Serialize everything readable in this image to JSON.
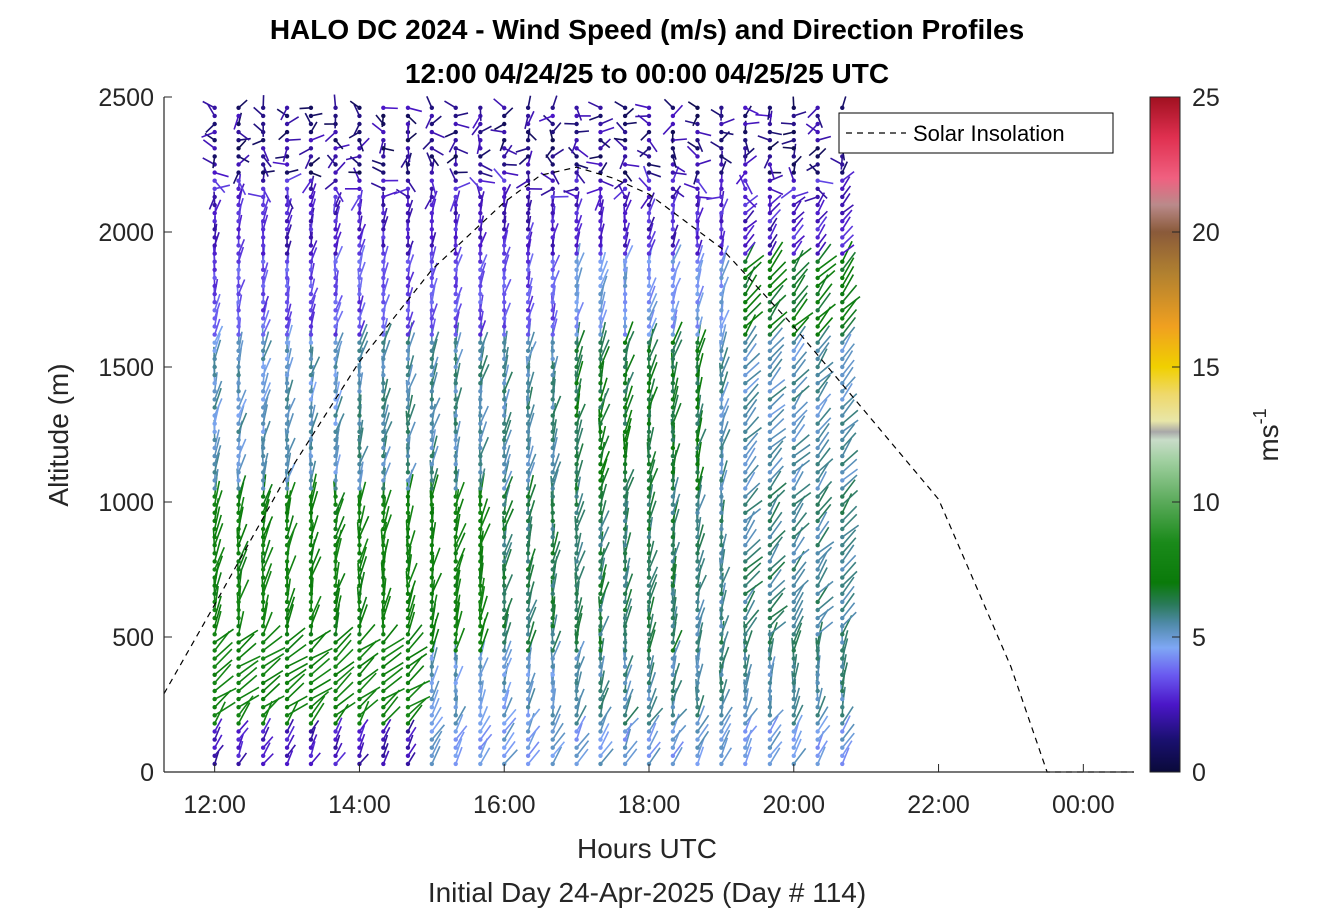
{
  "chart_data": {
    "type": "wind_barb_profile",
    "title_line1": "HALO DC 2024 - Wind Speed (m/s) and Direction Profiles",
    "title_line2": "12:00 04/24/25 to 00:00 04/25/25  UTC",
    "xlabel": "Hours UTC",
    "xlabel2": "Initial Day 24-Apr-2025 (Day # 114)",
    "ylabel": "Altitude (m)",
    "xlim": [
      11.3,
      24.7
    ],
    "ylim": [
      0,
      2500
    ],
    "xticks": [
      12,
      14,
      16,
      18,
      20,
      22,
      24
    ],
    "xtick_labels": [
      "12:00",
      "14:00",
      "16:00",
      "18:00",
      "20:00",
      "22:00",
      "00:00"
    ],
    "yticks": [
      0,
      500,
      1000,
      1500,
      2000,
      2500
    ],
    "ytick_labels": [
      "0",
      "500",
      "1000",
      "1500",
      "2000",
      "2500"
    ],
    "colorbar": {
      "label": "ms",
      "label_superscript": "-1",
      "range": [
        0,
        25
      ],
      "ticks": [
        0,
        5,
        10,
        15,
        20,
        25
      ],
      "tick_labels": [
        "0",
        "5",
        "10",
        "15",
        "20",
        "25"
      ],
      "stops": [
        {
          "v": 0,
          "c": "#0a0a3a"
        },
        {
          "v": 1.2,
          "c": "#1a1070"
        },
        {
          "v": 2.5,
          "c": "#4b16c8"
        },
        {
          "v": 3.6,
          "c": "#6a5af0"
        },
        {
          "v": 4.6,
          "c": "#7fa7f5"
        },
        {
          "v": 5.5,
          "c": "#4f8aa8"
        },
        {
          "v": 6.2,
          "c": "#2a7a5a"
        },
        {
          "v": 7.0,
          "c": "#0a7a0a"
        },
        {
          "v": 8.5,
          "c": "#1a8a1a"
        },
        {
          "v": 10.0,
          "c": "#5aaa5a"
        },
        {
          "v": 11.5,
          "c": "#9fcf9f"
        },
        {
          "v": 12.3,
          "c": "#c8dcc8"
        },
        {
          "v": 12.6,
          "c": "#a8a8a8"
        },
        {
          "v": 13.0,
          "c": "#e8e6a8"
        },
        {
          "v": 14.0,
          "c": "#efd86a"
        },
        {
          "v": 15.0,
          "c": "#f0d000"
        },
        {
          "v": 16.5,
          "c": "#f0a020"
        },
        {
          "v": 18.5,
          "c": "#b08030"
        },
        {
          "v": 20.0,
          "c": "#8a5a3a"
        },
        {
          "v": 21.0,
          "c": "#ba8a8a"
        },
        {
          "v": 22.0,
          "c": "#f06080"
        },
        {
          "v": 23.5,
          "c": "#e03050"
        },
        {
          "v": 25.0,
          "c": "#a01020"
        }
      ]
    },
    "profile_times": [
      12.0,
      12.33,
      12.67,
      13.0,
      13.33,
      13.67,
      14.0,
      14.33,
      14.67,
      15.0,
      15.33,
      15.67,
      16.0,
      16.33,
      16.67,
      17.0,
      17.33,
      17.67,
      18.0,
      18.33,
      18.67,
      19.0,
      19.33,
      19.67,
      20.0,
      20.33,
      20.67
    ],
    "series": [
      {
        "name": "Solar Insolation",
        "style": "dashed",
        "color": "#000000",
        "x": [
          11.3,
          12.0,
          13.0,
          14.0,
          15.0,
          16.0,
          16.5,
          17.0,
          17.5,
          18.0,
          19.0,
          20.0,
          21.0,
          22.0,
          23.0,
          23.5,
          24.7
        ],
        "y": [
          290,
          620,
          1100,
          1520,
          1860,
          2110,
          2210,
          2240,
          2200,
          2140,
          1940,
          1650,
          1330,
          1010,
          390,
          0,
          0
        ]
      }
    ],
    "legend": {
      "entries": [
        "Solar Insolation"
      ],
      "position": "top-right"
    }
  }
}
